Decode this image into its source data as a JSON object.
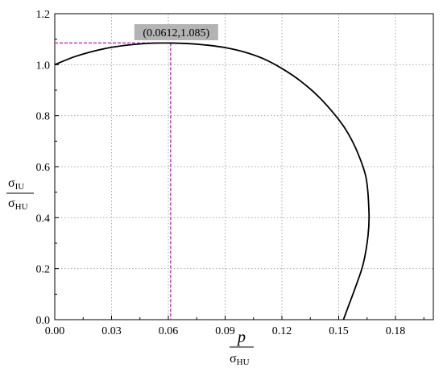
{
  "chart_data": {
    "type": "line",
    "xlim": [
      0,
      0.2
    ],
    "ylim": [
      0,
      1.2
    ],
    "x_ticks": [
      "0.00",
      "0.03",
      "0.06",
      "0.09",
      "0.12",
      "0.15",
      "0.18"
    ],
    "y_ticks": [
      "0.0",
      "0.2",
      "0.4",
      "0.6",
      "0.8",
      "1.0",
      "1.2"
    ],
    "grid": true,
    "xlabel": {
      "num": "p",
      "den_main": "σ",
      "den_sub": "HU"
    },
    "ylabel": {
      "num_main": "σ",
      "num_sub": "IU",
      "den_main": "σ",
      "den_sub": "HU"
    },
    "annotation": {
      "text": "(0.0612,1.085)",
      "x": 0.0612,
      "y": 1.085,
      "color": "#cc33cc"
    },
    "series": [
      {
        "x": [
          0.0,
          0.01,
          0.02,
          0.03,
          0.04,
          0.05,
          0.0612,
          0.07,
          0.08,
          0.09,
          0.1,
          0.11,
          0.12,
          0.13,
          0.14,
          0.15,
          0.155,
          0.16,
          0.1645,
          0.166,
          0.1655,
          0.163,
          0.159,
          0.155,
          0.1525
        ],
        "y": [
          1.0,
          1.03,
          1.052,
          1.068,
          1.078,
          1.084,
          1.085,
          1.083,
          1.077,
          1.067,
          1.05,
          1.024,
          0.985,
          0.935,
          0.87,
          0.785,
          0.73,
          0.655,
          0.555,
          0.42,
          0.33,
          0.22,
          0.13,
          0.05,
          0.0
        ],
        "color": "#000000"
      }
    ]
  }
}
